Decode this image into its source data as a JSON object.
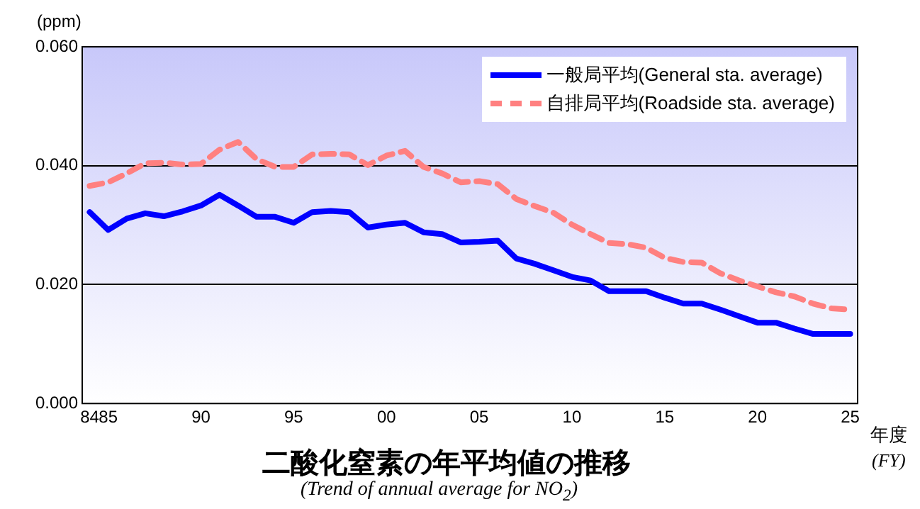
{
  "chart_data": {
    "type": "line",
    "title": "二酸化窒素の年平均値の推移",
    "subtitle": "(Trend of annual average for NO$_{2}$)",
    "xlabel": "年度",
    "annotations": [
      "(FY)"
    ],
    "ylabel": "(ppm)",
    "x": [
      1984,
      1985,
      1986,
      1987,
      1988,
      1989,
      1990,
      1991,
      1992,
      1993,
      1994,
      1995,
      1996,
      1997,
      1998,
      1999,
      2000,
      2001,
      2002,
      2003,
      2004,
      2005,
      2006,
      2007,
      2008,
      2009,
      2010,
      2011,
      2012,
      2013,
      2014,
      2015,
      2016,
      2017,
      2018,
      2019,
      2020,
      2021,
      2022,
      2023,
      2024,
      2025
    ],
    "series": [
      {
        "name": "一般局平均(General sta. average)",
        "color": "#0000ff",
        "line_style": "solid",
        "values": [
          0.0322,
          0.0292,
          0.0311,
          0.032,
          0.0315,
          0.0323,
          0.0333,
          0.0351,
          0.0333,
          0.0314,
          0.0314,
          0.0304,
          0.0322,
          0.0324,
          0.0322,
          0.0296,
          0.0301,
          0.0304,
          0.0288,
          0.0285,
          0.0271,
          0.0272,
          0.0274,
          0.0244,
          0.0235,
          0.0224,
          0.0213,
          0.0207,
          0.0189,
          0.0189,
          0.0189,
          0.0178,
          0.0168,
          0.0168,
          0.0158,
          0.0147,
          0.0136,
          0.0136,
          0.0126,
          0.0117,
          0.0117,
          0.0117
        ]
      },
      {
        "name": "自排局平均(Roadside sta. average)",
        "color": "#ff8080",
        "line_style": "dashed",
        "values": [
          0.0366,
          0.0372,
          0.0387,
          0.0404,
          0.0405,
          0.0402,
          0.0403,
          0.0427,
          0.044,
          0.0411,
          0.0398,
          0.0398,
          0.0419,
          0.042,
          0.0419,
          0.0401,
          0.0417,
          0.0425,
          0.0398,
          0.0387,
          0.0372,
          0.0374,
          0.0369,
          0.0344,
          0.0332,
          0.0321,
          0.0301,
          0.0285,
          0.027,
          0.0268,
          0.0262,
          0.0245,
          0.0238,
          0.0237,
          0.0219,
          0.0207,
          0.0197,
          0.0187,
          0.018,
          0.0168,
          0.016,
          0.0158
        ]
      }
    ],
    "xlim": [
      1983.6,
      2025.4
    ],
    "xticks": [
      {
        "value": 1984,
        "label": "84"
      },
      {
        "value": 1985,
        "label": "85"
      },
      {
        "value": 1990,
        "label": "90"
      },
      {
        "value": 1995,
        "label": "95"
      },
      {
        "value": 2000,
        "label": "00"
      },
      {
        "value": 2005,
        "label": "05"
      },
      {
        "value": 2010,
        "label": "10"
      },
      {
        "value": 2015,
        "label": "15"
      },
      {
        "value": 2020,
        "label": "20"
      },
      {
        "value": 2025,
        "label": "25"
      }
    ],
    "ylim": [
      0,
      0.06
    ],
    "yticks": [
      {
        "value": 0,
        "label": "0.000"
      },
      {
        "value": 0.02,
        "label": "0.020"
      },
      {
        "value": 0.04,
        "label": "0.040"
      },
      {
        "value": 0.06,
        "label": "0.060"
      }
    ],
    "grid": "y",
    "legend": "top right",
    "marker": "none"
  }
}
